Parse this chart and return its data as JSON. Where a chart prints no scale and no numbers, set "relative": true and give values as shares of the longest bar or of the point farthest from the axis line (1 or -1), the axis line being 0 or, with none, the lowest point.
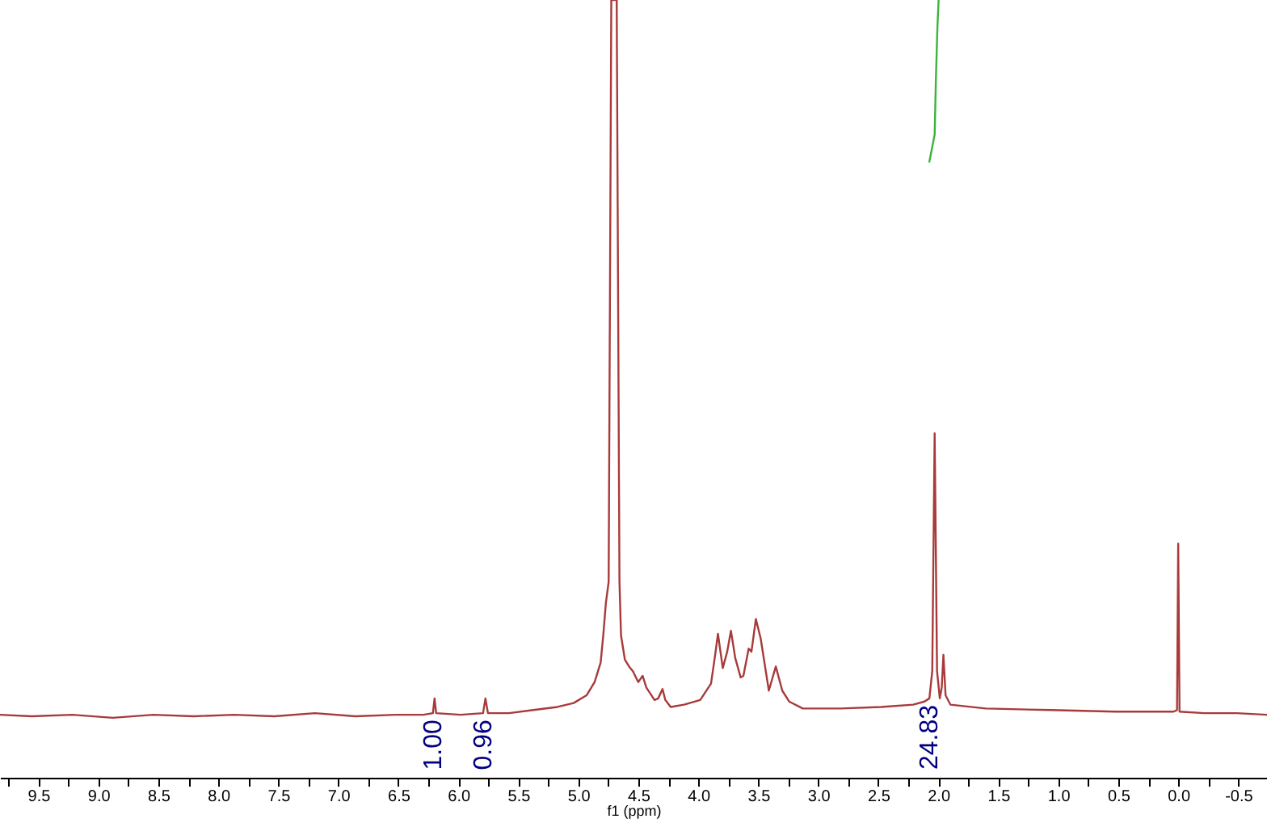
{
  "chart_data": {
    "type": "line",
    "relative": true,
    "xlabel": "f1 (ppm)",
    "xlim": [
      9.82,
      -0.74
    ],
    "xticks": [
      {
        "value": 9.75,
        "label": null
      },
      9.5,
      {
        "value": 9.25,
        "label": null
      },
      {
        "value": 9,
        "label": "9.0"
      },
      {
        "value": 8.75,
        "label": null
      },
      8.5,
      {
        "value": 8.25,
        "label": null
      },
      {
        "value": 8,
        "label": "8.0"
      },
      {
        "value": 7.75,
        "label": null
      },
      7.5,
      {
        "value": 7.25,
        "label": null
      },
      {
        "value": 7,
        "label": "7.0"
      },
      {
        "value": 6.75,
        "label": null
      },
      6.5,
      {
        "value": 6.25,
        "label": null
      },
      {
        "value": 6,
        "label": "6.0"
      },
      {
        "value": 5.75,
        "label": null
      },
      5.5,
      {
        "value": 5.25,
        "label": null
      },
      {
        "value": 5,
        "label": "5.0"
      },
      {
        "value": 4.75,
        "label": null
      },
      4.5,
      {
        "value": 4.25,
        "label": null
      },
      {
        "value": 4,
        "label": "4.0"
      },
      {
        "value": 3.75,
        "label": null
      },
      3.5,
      {
        "value": 3.25,
        "label": null
      },
      {
        "value": 3,
        "label": "3.0"
      },
      {
        "value": 2.75,
        "label": null
      },
      2.5,
      {
        "value": 2.25,
        "label": null
      },
      {
        "value": 2,
        "label": "2.0"
      },
      {
        "value": 1.75,
        "label": null
      },
      1.5,
      {
        "value": 1.25,
        "label": null
      },
      {
        "value": 1,
        "label": "1.0"
      },
      {
        "value": 0.75,
        "label": null
      },
      0.5,
      {
        "value": 0.25,
        "label": null
      },
      {
        "value": 0,
        "label": "0.0"
      },
      {
        "value": -0.25,
        "label": null
      },
      -0.5
    ],
    "series": [
      {
        "color": "#a83a3a",
        "x": [
          9.82,
          9.554,
          9.217,
          8.88,
          8.543,
          8.206,
          7.869,
          7.532,
          7.195,
          6.858,
          6.522,
          6.292,
          6.212,
          6.198,
          6.185,
          5.982,
          5.794,
          5.774,
          5.753,
          5.578,
          5.376,
          5.174,
          5.039,
          4.931,
          4.864,
          4.814,
          4.792,
          4.77,
          4.747,
          4.725,
          4.68,
          4.657,
          4.644,
          4.612,
          4.577,
          4.545,
          4.5,
          4.464,
          4.433,
          4.365,
          4.334,
          4.298,
          4.275,
          4.23,
          4.119,
          3.984,
          3.894,
          3.863,
          3.836,
          3.796,
          3.759,
          3.728,
          3.692,
          3.647,
          3.624,
          3.58,
          3.557,
          3.52,
          3.48,
          3.412,
          3.354,
          3.3,
          3.243,
          3.129,
          2.815,
          2.478,
          2.209,
          2.115,
          2.074,
          2.05,
          2.03,
          2.01,
          1.987,
          1.971,
          1.957,
          1.939,
          1.899,
          1.603,
          1.063,
          0.524,
          0.039,
          0.01,
          0.0,
          -0.011,
          -0.217,
          -0.487,
          -0.74
        ],
        "values": [
          0.081,
          0.079,
          0.081,
          0.077,
          0.081,
          0.079,
          0.081,
          0.079,
          0.083,
          0.079,
          0.081,
          0.081,
          0.083,
          0.102,
          0.083,
          0.081,
          0.083,
          0.102,
          0.083,
          0.083,
          0.087,
          0.091,
          0.096,
          0.106,
          0.123,
          0.148,
          0.183,
          0.225,
          0.252,
          1,
          1,
          0.252,
          0.183,
          0.152,
          0.143,
          0.137,
          0.123,
          0.131,
          0.116,
          0.1,
          0.102,
          0.114,
          0.1,
          0.091,
          0.094,
          0.1,
          0.121,
          0.154,
          0.185,
          0.141,
          0.162,
          0.189,
          0.154,
          0.129,
          0.131,
          0.166,
          0.162,
          0.204,
          0.179,
          0.112,
          0.143,
          0.112,
          0.098,
          0.089,
          0.089,
          0.091,
          0.094,
          0.098,
          0.102,
          0.137,
          0.443,
          0.137,
          0.102,
          0.116,
          0.158,
          0.106,
          0.094,
          0.089,
          0.087,
          0.085,
          0.085,
          0.087,
          0.301,
          0.085,
          0.083,
          0.083,
          0.081
        ]
      },
      {
        "color": "#3cb43c",
        "x": [
          2.074,
          2.03,
          2.02,
          2.007,
          1.997
        ],
        "values": [
          0.792,
          0.827,
          0.896,
          0.965,
          1
        ]
      }
    ],
    "annotations": [
      {
        "text": "1.00",
        "x": 6.212,
        "y": 0.083
      },
      {
        "text": "0.96",
        "x": 5.794,
        "y": 0.083
      },
      {
        "text": "24.83",
        "x": 2.074,
        "y": 0.102
      }
    ]
  }
}
